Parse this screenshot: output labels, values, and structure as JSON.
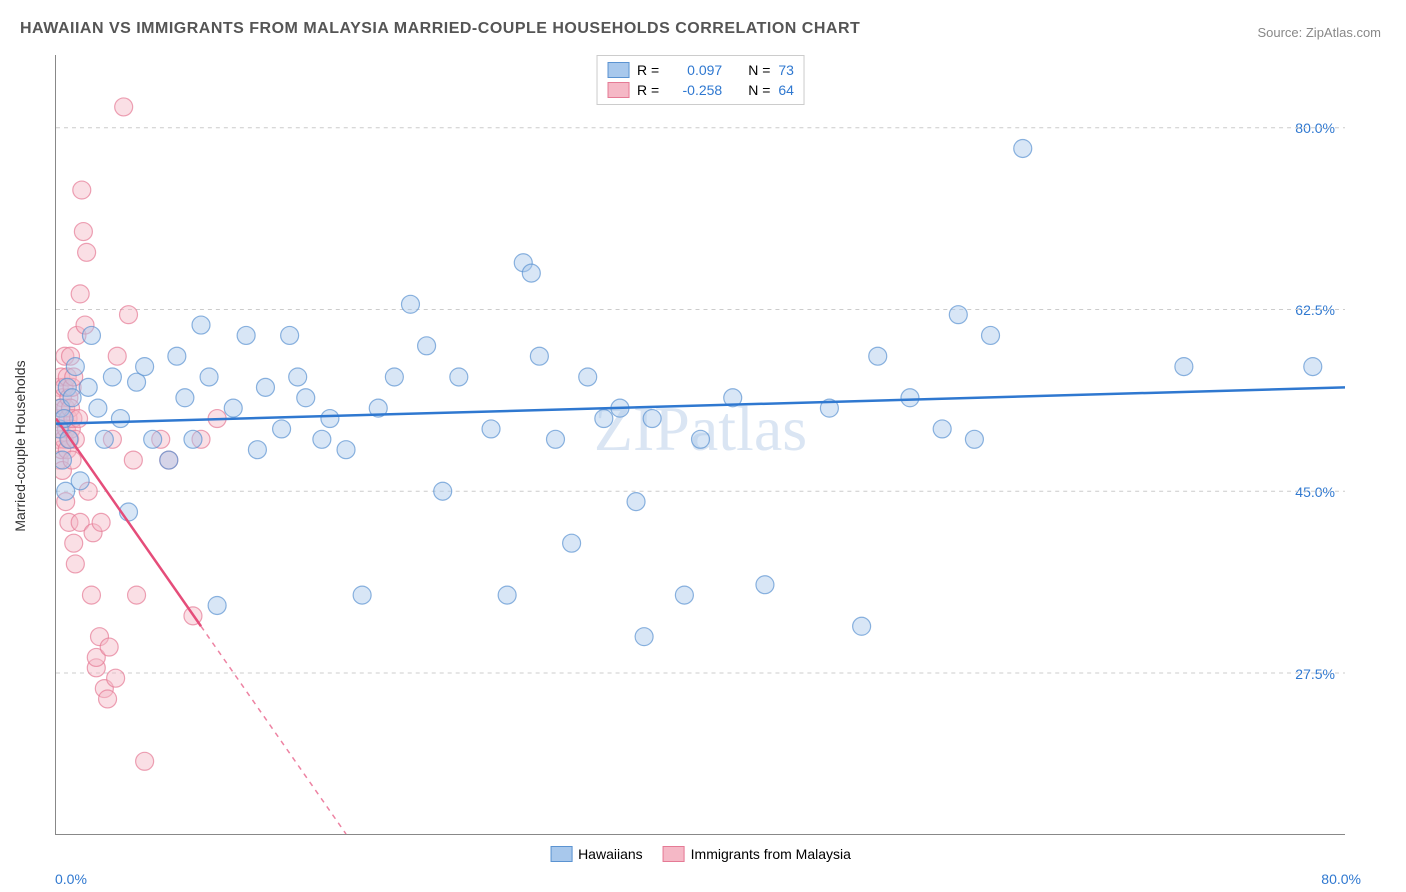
{
  "title": "HAWAIIAN VS IMMIGRANTS FROM MALAYSIA MARRIED-COUPLE HOUSEHOLDS CORRELATION CHART",
  "source": "Source: ZipAtlas.com",
  "watermark": "ZIPatlas",
  "ylabel": "Married-couple Households",
  "chart": {
    "type": "scatter",
    "xlim": [
      0,
      80
    ],
    "ylim": [
      12,
      87
    ],
    "x_axis_label_left": "0.0%",
    "x_axis_label_right": "80.0%",
    "y_ticks": [
      27.5,
      45.0,
      62.5,
      80.0
    ],
    "y_tick_labels": [
      "27.5%",
      "45.0%",
      "62.5%",
      "80.0%"
    ],
    "x_tick_positions": [
      10,
      20,
      30,
      40,
      50,
      60,
      70,
      80
    ],
    "grid_color": "#cccccc",
    "background_color": "#ffffff",
    "axis_color": "#888888",
    "marker_radius": 9,
    "marker_opacity": 0.45,
    "line_width": 2.5
  },
  "series": {
    "hawaiians": {
      "label": "Hawaiians",
      "color_fill": "#a8c8ec",
      "color_stroke": "#5b93d1",
      "line_color": "#2f78d0",
      "R": "0.097",
      "N": "73",
      "trend": {
        "x1": 0,
        "y1": 51.5,
        "x2": 80,
        "y2": 55.0,
        "dashed_from_x": null
      },
      "points": [
        [
          0.2,
          51
        ],
        [
          0.3,
          53
        ],
        [
          0.4,
          48
        ],
        [
          0.5,
          52
        ],
        [
          0.6,
          45
        ],
        [
          0.7,
          55
        ],
        [
          0.8,
          50
        ],
        [
          1.0,
          54
        ],
        [
          1.2,
          57
        ],
        [
          1.5,
          46
        ],
        [
          2,
          55
        ],
        [
          2.2,
          60
        ],
        [
          2.6,
          53
        ],
        [
          3,
          50
        ],
        [
          3.5,
          56
        ],
        [
          4,
          52
        ],
        [
          4.5,
          43
        ],
        [
          5,
          55.5
        ],
        [
          5.5,
          57
        ],
        [
          6,
          50
        ],
        [
          7,
          48
        ],
        [
          7.5,
          58
        ],
        [
          8,
          54
        ],
        [
          8.5,
          50
        ],
        [
          9,
          61
        ],
        [
          9.5,
          56
        ],
        [
          10,
          34
        ],
        [
          11,
          53
        ],
        [
          11.8,
          60
        ],
        [
          12.5,
          49
        ],
        [
          13,
          55
        ],
        [
          14,
          51
        ],
        [
          14.5,
          60
        ],
        [
          15,
          56
        ],
        [
          15.5,
          54
        ],
        [
          16.5,
          50
        ],
        [
          17,
          52
        ],
        [
          18,
          49
        ],
        [
          19,
          35
        ],
        [
          20,
          53
        ],
        [
          21,
          56
        ],
        [
          22,
          63
        ],
        [
          23,
          59
        ],
        [
          24,
          45
        ],
        [
          25,
          56
        ],
        [
          27,
          51
        ],
        [
          28,
          35
        ],
        [
          29,
          67
        ],
        [
          29.5,
          66
        ],
        [
          30,
          58
        ],
        [
          31,
          50
        ],
        [
          32,
          40
        ],
        [
          33,
          56
        ],
        [
          34,
          52
        ],
        [
          35,
          53
        ],
        [
          36,
          44
        ],
        [
          36.5,
          31
        ],
        [
          37,
          52
        ],
        [
          39,
          35
        ],
        [
          40,
          50
        ],
        [
          42,
          54
        ],
        [
          44,
          36
        ],
        [
          48,
          53
        ],
        [
          50,
          32
        ],
        [
          51,
          58
        ],
        [
          53,
          54
        ],
        [
          55,
          51
        ],
        [
          56,
          62
        ],
        [
          57,
          50
        ],
        [
          58,
          60
        ],
        [
          60,
          78
        ],
        [
          70,
          57
        ],
        [
          78,
          57
        ]
      ]
    },
    "malaysia": {
      "label": "Immigrants from Malaysia",
      "color_fill": "#f5b8c6",
      "color_stroke": "#e57a95",
      "line_color": "#e54d7a",
      "R": "-0.258",
      "N": "64",
      "trend": {
        "x1": 0,
        "y1": 52,
        "x2": 18,
        "y2": 12,
        "dashed_from_x": 9
      },
      "points": [
        [
          0.1,
          52
        ],
        [
          0.15,
          50
        ],
        [
          0.2,
          55
        ],
        [
          0.2,
          48
        ],
        [
          0.25,
          53
        ],
        [
          0.3,
          51
        ],
        [
          0.3,
          56
        ],
        [
          0.35,
          49
        ],
        [
          0.4,
          54
        ],
        [
          0.4,
          47
        ],
        [
          0.45,
          52
        ],
        [
          0.5,
          55
        ],
        [
          0.5,
          50
        ],
        [
          0.55,
          58
        ],
        [
          0.6,
          53
        ],
        [
          0.6,
          44
        ],
        [
          0.65,
          51
        ],
        [
          0.7,
          56
        ],
        [
          0.7,
          49
        ],
        [
          0.75,
          52
        ],
        [
          0.8,
          54
        ],
        [
          0.8,
          42
        ],
        [
          0.85,
          50
        ],
        [
          0.9,
          53
        ],
        [
          0.9,
          58
        ],
        [
          0.95,
          51
        ],
        [
          1.0,
          55
        ],
        [
          1.0,
          48
        ],
        [
          1.05,
          52
        ],
        [
          1.1,
          56
        ],
        [
          1.1,
          40
        ],
        [
          1.2,
          50
        ],
        [
          1.2,
          38
        ],
        [
          1.3,
          60
        ],
        [
          1.4,
          52
        ],
        [
          1.5,
          64
        ],
        [
          1.5,
          42
        ],
        [
          1.6,
          74
        ],
        [
          1.7,
          70
        ],
        [
          1.8,
          61
        ],
        [
          1.9,
          68
        ],
        [
          2.0,
          45
        ],
        [
          2.2,
          35
        ],
        [
          2.3,
          41
        ],
        [
          2.5,
          28
        ],
        [
          2.5,
          29
        ],
        [
          2.7,
          31
        ],
        [
          2.8,
          42
        ],
        [
          3.0,
          26
        ],
        [
          3.2,
          25
        ],
        [
          3.3,
          30
        ],
        [
          3.5,
          50
        ],
        [
          3.7,
          27
        ],
        [
          3.8,
          58
        ],
        [
          4.2,
          82
        ],
        [
          4.5,
          62
        ],
        [
          4.8,
          48
        ],
        [
          5.0,
          35
        ],
        [
          5.5,
          19
        ],
        [
          6.5,
          50
        ],
        [
          7.0,
          48
        ],
        [
          8.5,
          33
        ],
        [
          9.0,
          50
        ],
        [
          10,
          52
        ]
      ]
    }
  },
  "legend": {
    "r_label": "R =",
    "n_label": "N =",
    "value_color": "#2f78d0"
  },
  "label_colors": {
    "axis_value": "#2f78d0",
    "axis_title": "#333333"
  }
}
